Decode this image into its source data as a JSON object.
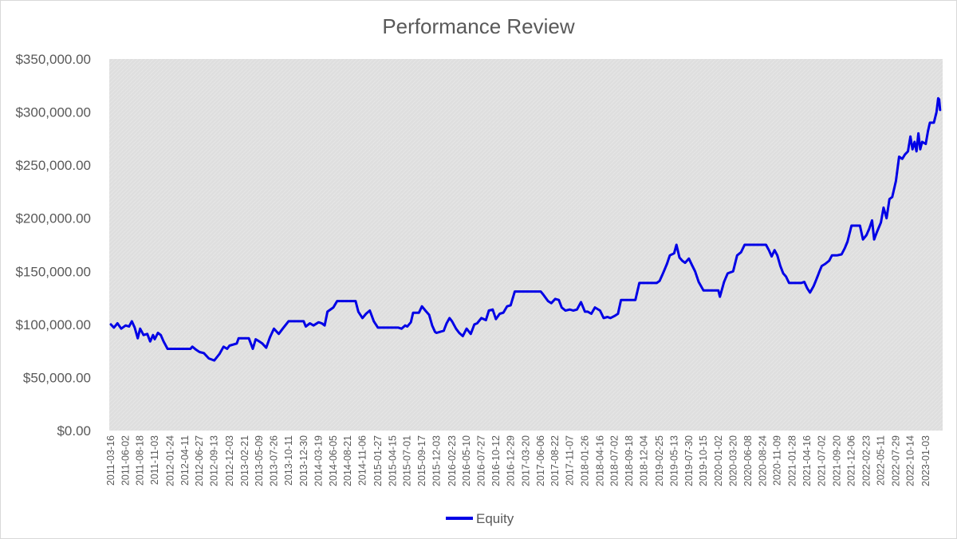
{
  "chart_data": {
    "type": "line",
    "title": "Performance Review",
    "xlabel": "",
    "ylabel": "",
    "ylim": [
      0,
      350000
    ],
    "y_ticks": [
      "$0.00",
      "$50,000.00",
      "$100,000.00",
      "$150,000.00",
      "$200,000.00",
      "$250,000.00",
      "$300,000.00",
      "$350,000.00"
    ],
    "y_tick_values": [
      0,
      50000,
      100000,
      150000,
      200000,
      250000,
      300000,
      350000
    ],
    "x_ticks": [
      "2011-03-16",
      "2011-06-02",
      "2011-08-18",
      "2011-11-03",
      "2012-01-24",
      "2012-04-11",
      "2012-06-27",
      "2012-09-13",
      "2012-12-03",
      "2013-02-21",
      "2013-05-09",
      "2013-07-26",
      "2013-10-11",
      "2013-12-30",
      "2014-03-19",
      "2014-06-05",
      "2014-08-21",
      "2014-11-06",
      "2015-01-27",
      "2015-04-15",
      "2015-07-01",
      "2015-09-17",
      "2015-12-03",
      "2016-02-23",
      "2016-05-10",
      "2016-07-27",
      "2016-10-12",
      "2016-12-29",
      "2017-03-20",
      "2017-06-06",
      "2017-08-22",
      "2017-11-07",
      "2018-01-26",
      "2018-04-16",
      "2018-07-02",
      "2018-09-18",
      "2018-12-04",
      "2019-02-25",
      "2019-05-13",
      "2019-07-30",
      "2019-10-15",
      "2020-01-02",
      "2020-03-20",
      "2020-06-08",
      "2020-08-24",
      "2020-11-09",
      "2021-01-28",
      "2021-04-16",
      "2021-07-02",
      "2021-09-20",
      "2021-12-06",
      "2022-02-23",
      "2022-05-11",
      "2022-07-29",
      "2022-10-14",
      "2023-01-03"
    ],
    "grid": false,
    "legend_position": "bottom",
    "plot_background": "#e0e0e0",
    "series": [
      {
        "name": "Equity",
        "color": "#0000e6",
        "points": [
          [
            "2011-03-16",
            100000
          ],
          [
            "2011-04-01",
            97000
          ],
          [
            "2011-04-20",
            101000
          ],
          [
            "2011-05-10",
            96000
          ],
          [
            "2011-06-02",
            99000
          ],
          [
            "2011-06-20",
            98000
          ],
          [
            "2011-07-05",
            103000
          ],
          [
            "2011-07-20",
            97000
          ],
          [
            "2011-08-05",
            87000
          ],
          [
            "2011-08-18",
            96000
          ],
          [
            "2011-09-05",
            90000
          ],
          [
            "2011-09-25",
            91000
          ],
          [
            "2011-10-10",
            84000
          ],
          [
            "2011-10-25",
            90000
          ],
          [
            "2011-11-03",
            86000
          ],
          [
            "2011-11-20",
            92000
          ],
          [
            "2011-12-05",
            90000
          ],
          [
            "2011-12-20",
            84000
          ],
          [
            "2012-01-10",
            77000
          ],
          [
            "2012-01-24",
            77000
          ],
          [
            "2012-04-11",
            77000
          ],
          [
            "2012-05-10",
            77000
          ],
          [
            "2012-05-20",
            79000
          ],
          [
            "2012-06-10",
            76000
          ],
          [
            "2012-06-27",
            74000
          ],
          [
            "2012-07-20",
            73000
          ],
          [
            "2012-08-15",
            68000
          ],
          [
            "2012-09-13",
            66000
          ],
          [
            "2012-10-10",
            72000
          ],
          [
            "2012-11-01",
            79000
          ],
          [
            "2012-11-20",
            77000
          ],
          [
            "2012-12-03",
            80000
          ],
          [
            "2013-01-10",
            82000
          ],
          [
            "2013-01-20",
            87000
          ],
          [
            "2013-02-21",
            87000
          ],
          [
            "2013-03-15",
            87000
          ],
          [
            "2013-04-05",
            77000
          ],
          [
            "2013-04-20",
            86000
          ],
          [
            "2013-05-09",
            84000
          ],
          [
            "2013-05-25",
            82000
          ],
          [
            "2013-06-15",
            78000
          ],
          [
            "2013-07-05",
            88000
          ],
          [
            "2013-07-26",
            96000
          ],
          [
            "2013-08-20",
            91000
          ],
          [
            "2013-09-10",
            96000
          ],
          [
            "2013-10-11",
            103000
          ],
          [
            "2013-11-20",
            103000
          ],
          [
            "2013-12-30",
            103000
          ],
          [
            "2014-01-10",
            98000
          ],
          [
            "2014-02-01",
            101000
          ],
          [
            "2014-02-20",
            99000
          ],
          [
            "2014-03-19",
            102000
          ],
          [
            "2014-04-05",
            101000
          ],
          [
            "2014-04-20",
            99000
          ],
          [
            "2014-05-05",
            112000
          ],
          [
            "2014-06-05",
            116000
          ],
          [
            "2014-06-25",
            122000
          ],
          [
            "2014-08-21",
            122000
          ],
          [
            "2014-10-01",
            122000
          ],
          [
            "2014-10-15",
            112000
          ],
          [
            "2014-11-06",
            106000
          ],
          [
            "2014-11-25",
            110000
          ],
          [
            "2014-12-15",
            113000
          ],
          [
            "2015-01-05",
            103000
          ],
          [
            "2015-01-27",
            97000
          ],
          [
            "2015-04-15",
            97000
          ],
          [
            "2015-05-15",
            97000
          ],
          [
            "2015-06-01",
            96000
          ],
          [
            "2015-06-20",
            99000
          ],
          [
            "2015-07-01",
            98000
          ],
          [
            "2015-07-20",
            102000
          ],
          [
            "2015-08-01",
            111000
          ],
          [
            "2015-09-01",
            111000
          ],
          [
            "2015-09-17",
            117000
          ],
          [
            "2015-10-05",
            113000
          ],
          [
            "2015-10-25",
            109000
          ],
          [
            "2015-11-10",
            99000
          ],
          [
            "2015-11-25",
            93000
          ],
          [
            "2015-12-03",
            92000
          ],
          [
            "2016-01-10",
            94000
          ],
          [
            "2016-01-25",
            101000
          ],
          [
            "2016-02-10",
            106000
          ],
          [
            "2016-02-23",
            103000
          ],
          [
            "2016-03-15",
            96000
          ],
          [
            "2016-04-01",
            92000
          ],
          [
            "2016-04-20",
            89000
          ],
          [
            "2016-05-10",
            96000
          ],
          [
            "2016-06-01",
            91000
          ],
          [
            "2016-06-20",
            100000
          ],
          [
            "2016-07-05",
            101000
          ],
          [
            "2016-07-27",
            106000
          ],
          [
            "2016-08-20",
            104000
          ],
          [
            "2016-09-05",
            113000
          ],
          [
            "2016-09-25",
            114000
          ],
          [
            "2016-10-12",
            105000
          ],
          [
            "2016-11-01",
            110000
          ],
          [
            "2016-11-20",
            111000
          ],
          [
            "2016-12-10",
            117000
          ],
          [
            "2016-12-29",
            118000
          ],
          [
            "2017-01-20",
            131000
          ],
          [
            "2017-03-20",
            131000
          ],
          [
            "2017-06-06",
            131000
          ],
          [
            "2017-06-20",
            128000
          ],
          [
            "2017-07-15",
            122000
          ],
          [
            "2017-08-01",
            120000
          ],
          [
            "2017-08-22",
            124000
          ],
          [
            "2017-09-10",
            123000
          ],
          [
            "2017-09-25",
            116000
          ],
          [
            "2017-10-15",
            113000
          ],
          [
            "2017-11-07",
            114000
          ],
          [
            "2017-11-25",
            113000
          ],
          [
            "2017-12-15",
            114000
          ],
          [
            "2018-01-05",
            121000
          ],
          [
            "2018-01-26",
            112000
          ],
          [
            "2018-02-10",
            112000
          ],
          [
            "2018-03-01",
            110000
          ],
          [
            "2018-03-20",
            116000
          ],
          [
            "2018-04-16",
            113000
          ],
          [
            "2018-05-05",
            106000
          ],
          [
            "2018-05-25",
            107000
          ],
          [
            "2018-06-10",
            106000
          ],
          [
            "2018-07-02",
            108000
          ],
          [
            "2018-07-20",
            110000
          ],
          [
            "2018-08-05",
            123000
          ],
          [
            "2018-09-18",
            123000
          ],
          [
            "2018-10-20",
            123000
          ],
          [
            "2018-11-10",
            139000
          ],
          [
            "2018-12-04",
            139000
          ],
          [
            "2019-01-25",
            139000
          ],
          [
            "2019-02-10",
            139000
          ],
          [
            "2019-02-25",
            141000
          ],
          [
            "2019-03-15",
            148000
          ],
          [
            "2019-04-05",
            157000
          ],
          [
            "2019-04-20",
            165000
          ],
          [
            "2019-05-13",
            167000
          ],
          [
            "2019-05-25",
            175000
          ],
          [
            "2019-06-10",
            163000
          ],
          [
            "2019-06-25",
            160000
          ],
          [
            "2019-07-10",
            158000
          ],
          [
            "2019-07-30",
            162000
          ],
          [
            "2019-08-15",
            156000
          ],
          [
            "2019-09-01",
            150000
          ],
          [
            "2019-09-20",
            140000
          ],
          [
            "2019-10-15",
            132000
          ],
          [
            "2019-11-20",
            132000
          ],
          [
            "2020-01-02",
            132000
          ],
          [
            "2020-01-10",
            126000
          ],
          [
            "2020-02-01",
            140000
          ],
          [
            "2020-02-20",
            148000
          ],
          [
            "2020-03-20",
            150000
          ],
          [
            "2020-04-10",
            165000
          ],
          [
            "2020-05-01",
            168000
          ],
          [
            "2020-05-20",
            175000
          ],
          [
            "2020-06-08",
            175000
          ],
          [
            "2020-08-24",
            175000
          ],
          [
            "2020-09-10",
            175000
          ],
          [
            "2020-09-25",
            170000
          ],
          [
            "2020-10-10",
            164000
          ],
          [
            "2020-10-25",
            170000
          ],
          [
            "2020-11-09",
            165000
          ],
          [
            "2020-11-25",
            155000
          ],
          [
            "2020-12-10",
            148000
          ],
          [
            "2020-12-25",
            145000
          ],
          [
            "2021-01-10",
            139000
          ],
          [
            "2021-01-28",
            139000
          ],
          [
            "2021-03-15",
            139000
          ],
          [
            "2021-04-01",
            140000
          ],
          [
            "2021-04-16",
            134000
          ],
          [
            "2021-05-01",
            130000
          ],
          [
            "2021-05-20",
            136000
          ],
          [
            "2021-06-05",
            143000
          ],
          [
            "2021-06-20",
            150000
          ],
          [
            "2021-07-02",
            155000
          ],
          [
            "2021-07-20",
            157000
          ],
          [
            "2021-08-10",
            160000
          ],
          [
            "2021-08-25",
            165000
          ],
          [
            "2021-09-20",
            165000
          ],
          [
            "2021-10-15",
            166000
          ],
          [
            "2021-11-01",
            172000
          ],
          [
            "2021-11-15",
            178000
          ],
          [
            "2021-12-06",
            193000
          ],
          [
            "2022-01-20",
            193000
          ],
          [
            "2022-02-05",
            180000
          ],
          [
            "2022-02-23",
            184000
          ],
          [
            "2022-03-10",
            190000
          ],
          [
            "2022-03-25",
            198000
          ],
          [
            "2022-04-05",
            180000
          ],
          [
            "2022-04-20",
            187000
          ],
          [
            "2022-05-11",
            196000
          ],
          [
            "2022-05-25",
            210000
          ],
          [
            "2022-06-10",
            200000
          ],
          [
            "2022-06-25",
            218000
          ],
          [
            "2022-07-10",
            220000
          ],
          [
            "2022-07-29",
            235000
          ],
          [
            "2022-08-15",
            258000
          ],
          [
            "2022-09-01",
            256000
          ],
          [
            "2022-09-15",
            260000
          ],
          [
            "2022-10-01",
            263000
          ],
          [
            "2022-10-14",
            277000
          ],
          [
            "2022-10-25",
            265000
          ],
          [
            "2022-11-05",
            272000
          ],
          [
            "2022-11-15",
            263000
          ],
          [
            "2022-11-25",
            280000
          ],
          [
            "2022-12-05",
            265000
          ],
          [
            "2022-12-15",
            272000
          ],
          [
            "2023-01-03",
            270000
          ],
          [
            "2023-01-15",
            282000
          ],
          [
            "2023-01-25",
            290000
          ],
          [
            "2023-02-15",
            290000
          ],
          [
            "2023-03-01",
            300000
          ],
          [
            "2023-03-10",
            313000
          ],
          [
            "2023-03-15",
            312000
          ],
          [
            "2023-03-20",
            302000
          ]
        ]
      }
    ]
  }
}
